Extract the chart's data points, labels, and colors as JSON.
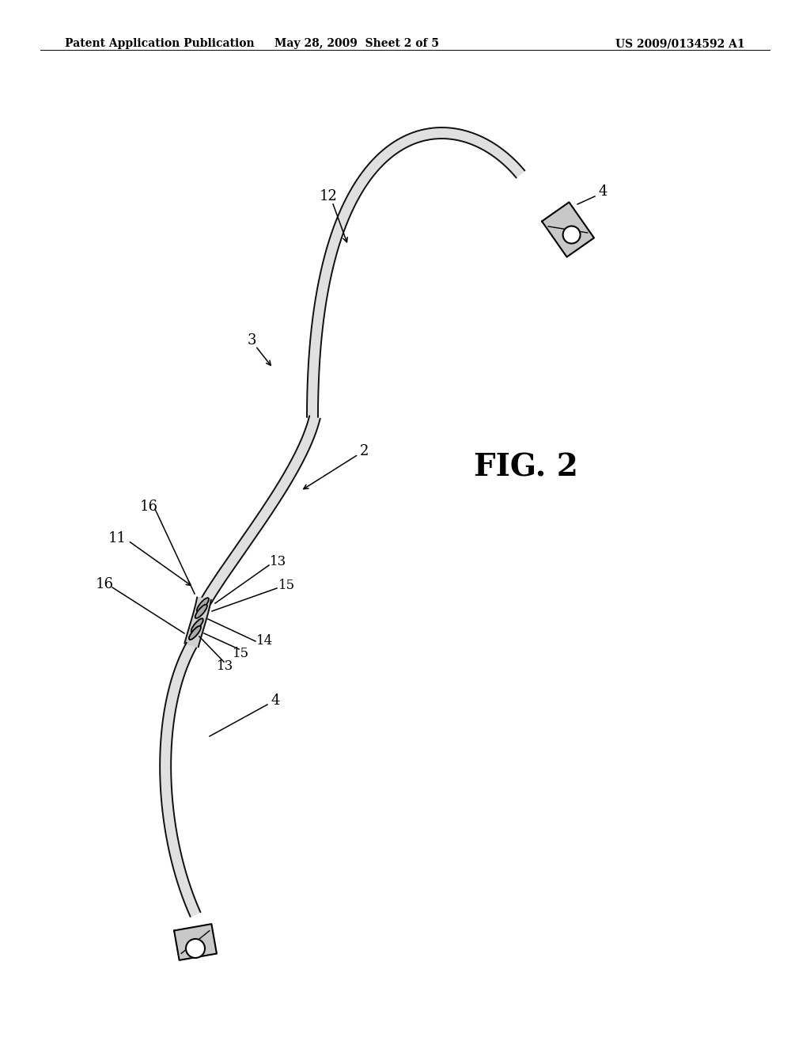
{
  "bg_color": "#ffffff",
  "header_left": "Patent Application Publication",
  "header_center": "May 28, 2009  Sheet 2 of 5",
  "header_right": "US 2009/0134592 A1",
  "fig_label": "FIG. 2"
}
